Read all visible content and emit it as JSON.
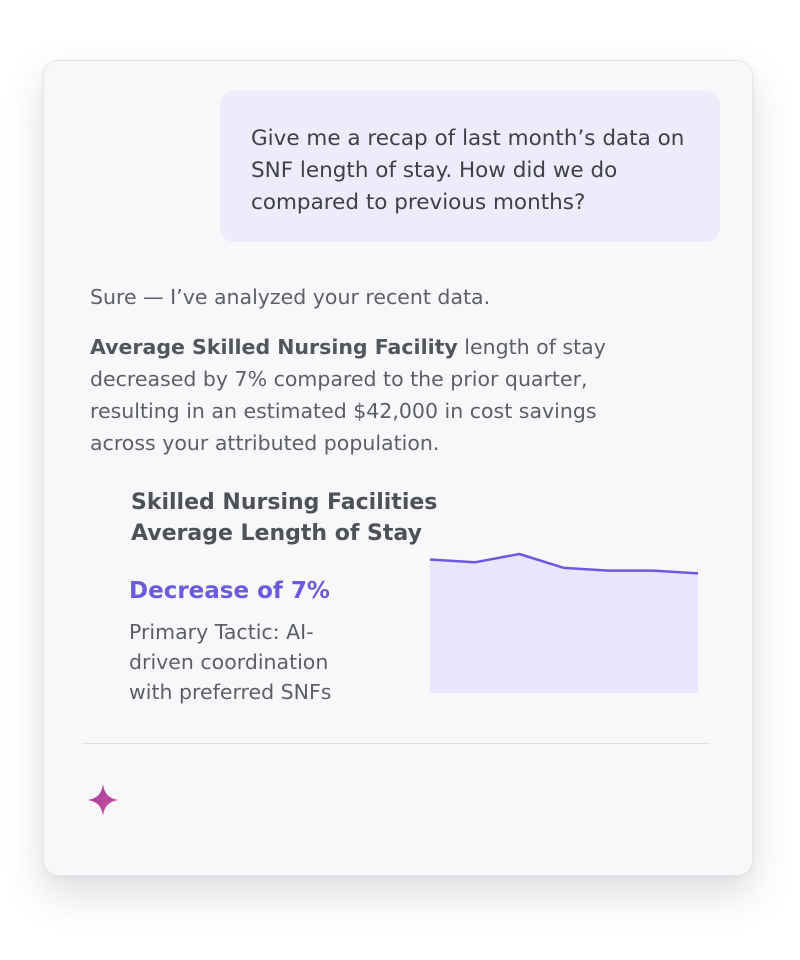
{
  "conversation": {
    "user_message": "Give me a recap of last month’s data on SNF length of stay. How did we do compared to previous months?",
    "assistant_intro": "Sure — I’ve analyzed your recent data.",
    "assistant_body_bold": "Average Skilled Nursing Facility",
    "assistant_body_rest": " length of stay decreased by 7% compared to the prior quarter, resulting in an estimated $42,000 in cost savings across your attributed population."
  },
  "insight": {
    "title_line1": "Skilled Nursing Facilities",
    "title_line2": "Average Length of Stay",
    "highlight": "Decrease of 7%",
    "tactic": "Primary Tactic: AI-driven coordination with preferred SNFs"
  },
  "chart_data": {
    "type": "area",
    "x": [
      1,
      2,
      3,
      4,
      5,
      6,
      7
    ],
    "values": [
      0.96,
      0.94,
      1.0,
      0.9,
      0.88,
      0.88,
      0.86
    ],
    "ylim": [
      0,
      1.05
    ],
    "grid": false,
    "color": "#6a5ae0",
    "fill": "#e9e5fb"
  },
  "colors": {
    "accent": "#6a5ae0",
    "bubble": "#eeebfb",
    "card": "#f8f8fb"
  },
  "icons": {
    "assistant": "sparkle-icon"
  }
}
